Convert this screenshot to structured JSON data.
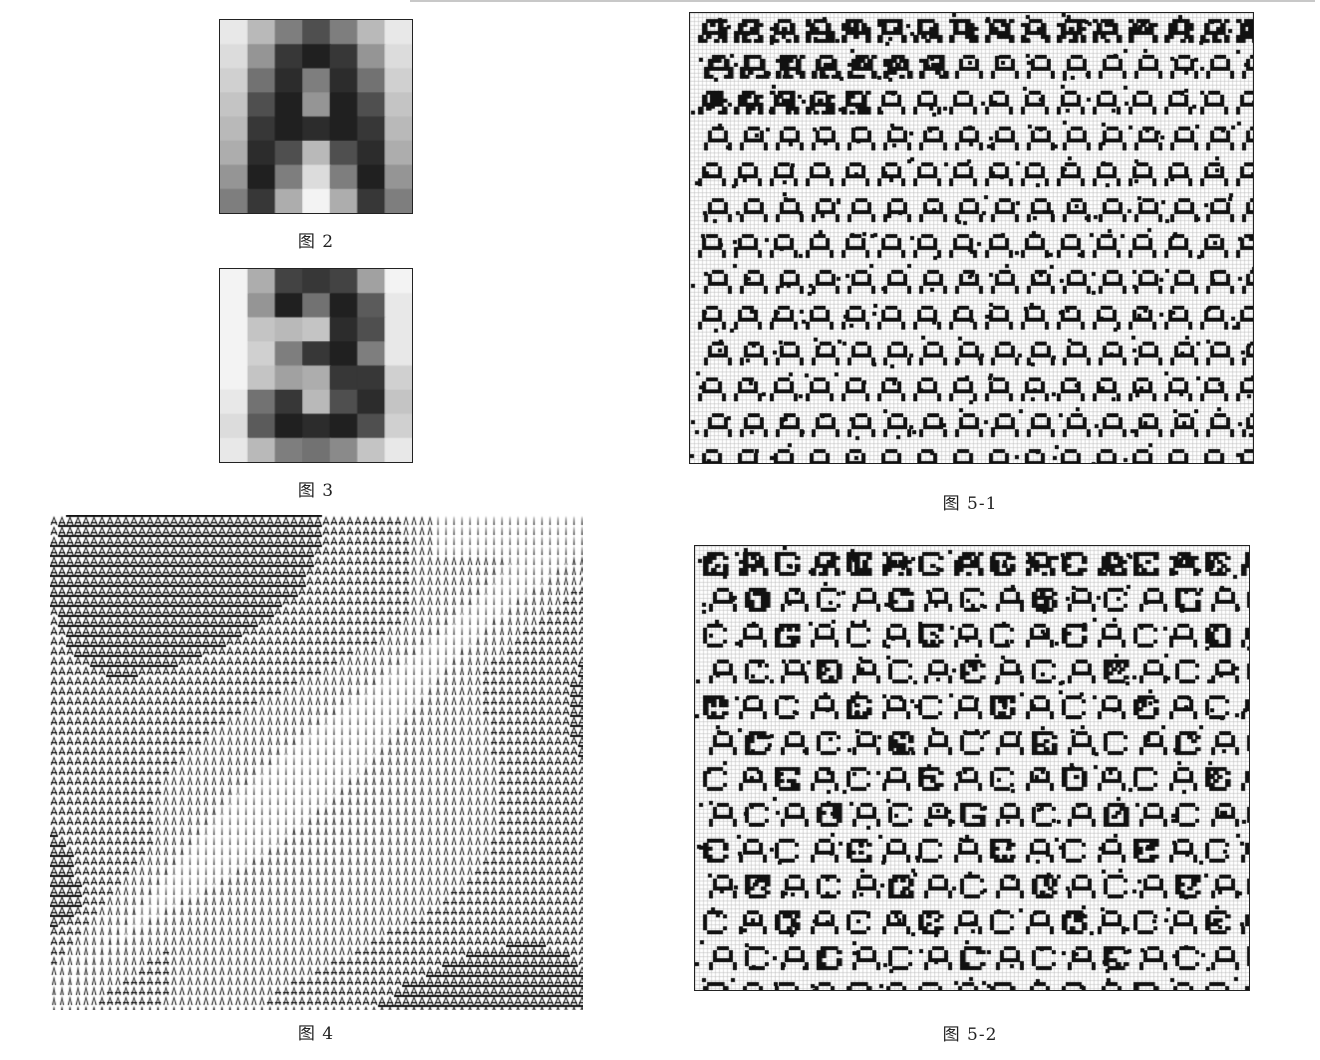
{
  "figures": {
    "fig2": {
      "caption": "图 2",
      "glyph": "A",
      "kind": "grayscale-pixel-glyph"
    },
    "fig3": {
      "caption": "图 3",
      "glyph": "3",
      "kind": "grayscale-pixel-glyph"
    },
    "fig4": {
      "caption": "图 4",
      "glyph": "A",
      "kind": "glyph-halftone-image"
    },
    "fig5_1": {
      "caption": "图 5-1",
      "glyphs": [
        "A"
      ],
      "kind": "glyph-mosaic-grid"
    },
    "fig5_2": {
      "caption": "图 5-2",
      "glyphs": [
        "C",
        "A"
      ],
      "kind": "glyph-mosaic-grid"
    }
  },
  "colors": {
    "ink": "#111111",
    "paper": "#ffffff",
    "grid": "#b8b8b8"
  }
}
